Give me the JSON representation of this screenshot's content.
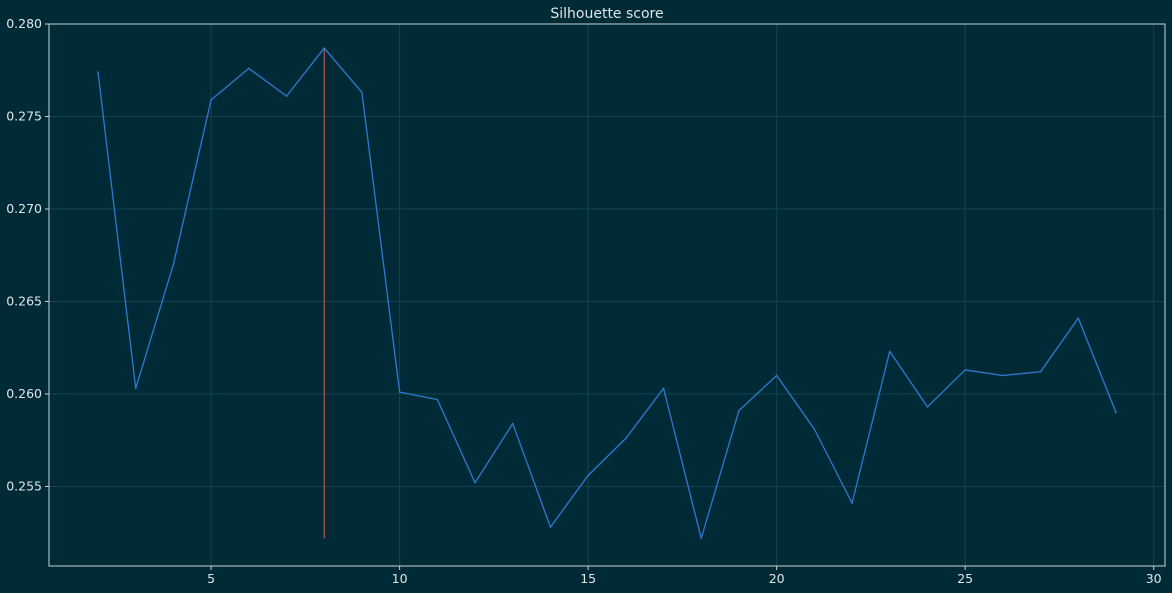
{
  "chart_data": {
    "type": "line",
    "title": "Silhouette score",
    "xlabel": "",
    "ylabel": "",
    "xlim": [
      0.7,
      30.3
    ],
    "ylim": [
      0.2507,
      0.28
    ],
    "x_ticks": [
      5,
      10,
      15,
      20,
      25,
      30
    ],
    "y_ticks": [
      0.255,
      0.26,
      0.265,
      0.27,
      0.275,
      0.28
    ],
    "x_tick_labels": [
      "5",
      "10",
      "15",
      "20",
      "25",
      "30"
    ],
    "y_tick_labels": [
      "0.255",
      "0.260",
      "0.265",
      "0.270",
      "0.275",
      "0.280"
    ],
    "grid": true,
    "series": [
      {
        "color": "#2f79d4",
        "x": [
          2,
          3,
          4,
          5,
          6,
          7,
          8,
          9,
          10,
          11,
          12,
          13,
          14,
          15,
          16,
          17,
          18,
          19,
          20,
          21,
          22,
          23,
          24,
          25,
          26,
          27,
          28,
          29
        ],
        "values": [
          0.2774,
          0.2603,
          0.267,
          0.2759,
          0.2776,
          0.2761,
          0.2787,
          0.2763,
          0.2601,
          0.2597,
          0.2552,
          0.2584,
          0.2528,
          0.2556,
          0.2576,
          0.2603,
          0.2522,
          0.2591,
          0.261,
          0.2581,
          0.2541,
          0.2623,
          0.2593,
          0.2613,
          0.261,
          0.2612,
          0.2641,
          0.259
        ]
      }
    ],
    "vertical_marker": {
      "x": 8,
      "y_range": [
        0.2522,
        0.2787
      ],
      "color": "#e05a5a"
    }
  }
}
